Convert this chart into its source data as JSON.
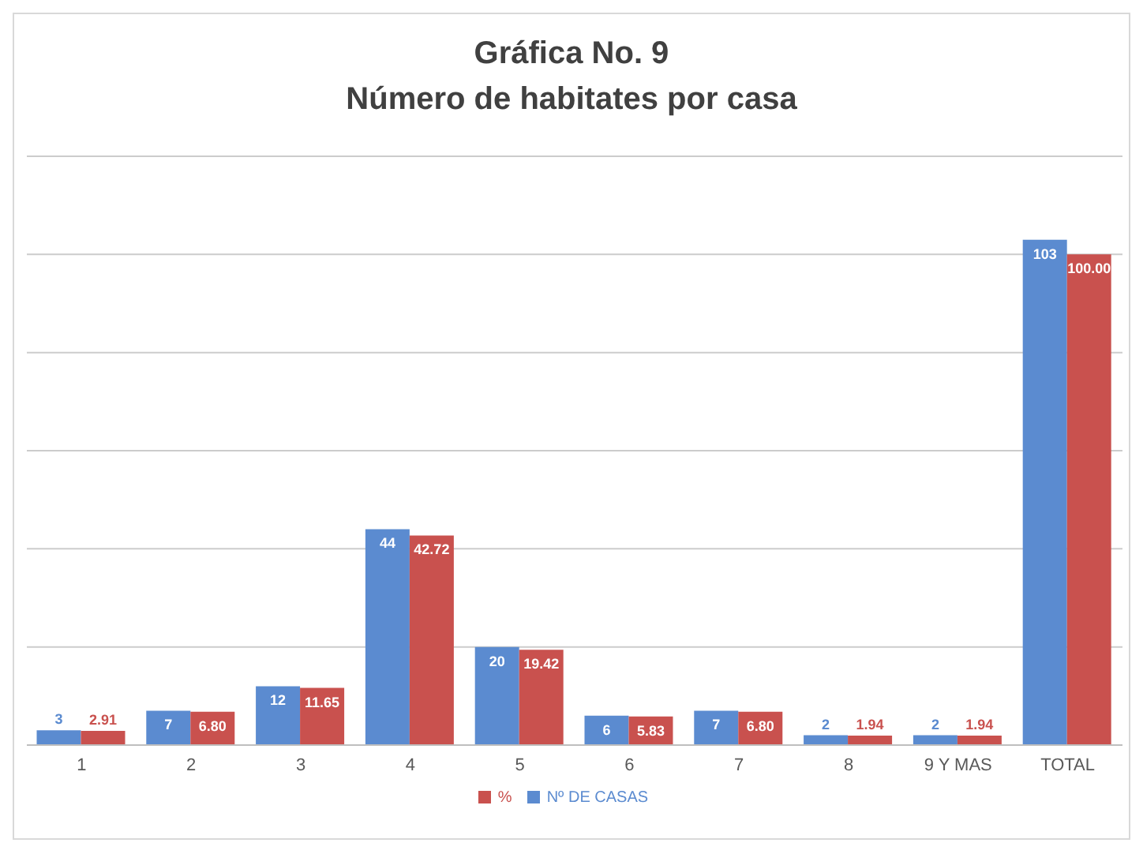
{
  "chart_data": {
    "type": "bar",
    "title": "Gráfica No. 9",
    "subtitle": "Número de habitates por casa",
    "categories": [
      "1",
      "2",
      "3",
      "4",
      "5",
      "6",
      "7",
      "8",
      "9 Y MAS",
      "TOTAL"
    ],
    "series": [
      {
        "name": "Nº DE CASAS",
        "color": "#5b8bd0",
        "values": [
          3,
          7,
          12,
          44,
          20,
          6,
          7,
          2,
          2,
          103
        ],
        "value_labels": [
          "3",
          "7",
          "12",
          "44",
          "20",
          "6",
          "7",
          "2",
          "2",
          "103"
        ]
      },
      {
        "name": "%",
        "color": "#c9514e",
        "values": [
          2.91,
          6.8,
          11.65,
          42.72,
          19.42,
          5.83,
          6.8,
          1.94,
          1.94,
          100.0
        ],
        "value_labels": [
          "2.91",
          "6.80",
          "11.65",
          "42.72",
          "19.42",
          "5.83",
          "6.80",
          "1.94",
          "1.94",
          "100.00"
        ]
      }
    ],
    "data_labels": true,
    "tick_labels": "x",
    "grid": "y",
    "legend": "bottom"
  }
}
